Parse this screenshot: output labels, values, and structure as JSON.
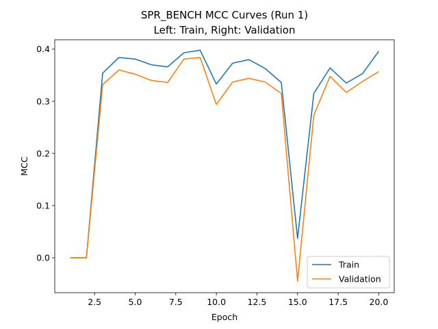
{
  "chart_data": {
    "type": "line",
    "title": "SPR_BENCH MCC Curves (Run 1)",
    "subtitle": "Left: Train, Right: Validation",
    "xlabel": "Epoch",
    "ylabel": "MCC",
    "xlim": [
      0.05,
      20.95
    ],
    "ylim": [
      -0.067,
      0.418
    ],
    "xticks": [
      2.5,
      5.0,
      7.5,
      10.0,
      12.5,
      15.0,
      17.5,
      20.0
    ],
    "xtick_labels": [
      "2.5",
      "5.0",
      "7.5",
      "10.0",
      "12.5",
      "15.0",
      "17.5",
      "20.0"
    ],
    "yticks": [
      0.0,
      0.1,
      0.2,
      0.3,
      0.4
    ],
    "ytick_labels": [
      "0.0",
      "0.1",
      "0.2",
      "0.3",
      "0.4"
    ],
    "grid": false,
    "legend_position": "bottom-right",
    "x": [
      1,
      2,
      3,
      4,
      5,
      6,
      7,
      8,
      9,
      10,
      11,
      12,
      13,
      14,
      15,
      16,
      17,
      18,
      19,
      20
    ],
    "series": [
      {
        "name": "Train",
        "color": "#1f77b4",
        "values": [
          0.0,
          0.0,
          0.354,
          0.384,
          0.381,
          0.37,
          0.366,
          0.393,
          0.398,
          0.333,
          0.373,
          0.38,
          0.363,
          0.336,
          0.037,
          0.315,
          0.364,
          0.335,
          0.353,
          0.396
        ]
      },
      {
        "name": "Validation",
        "color": "#ff7f0e",
        "values": [
          0.0,
          0.0,
          0.332,
          0.36,
          0.352,
          0.34,
          0.336,
          0.381,
          0.384,
          0.294,
          0.337,
          0.344,
          0.337,
          0.315,
          -0.045,
          0.273,
          0.348,
          0.317,
          0.338,
          0.357
        ]
      }
    ]
  }
}
